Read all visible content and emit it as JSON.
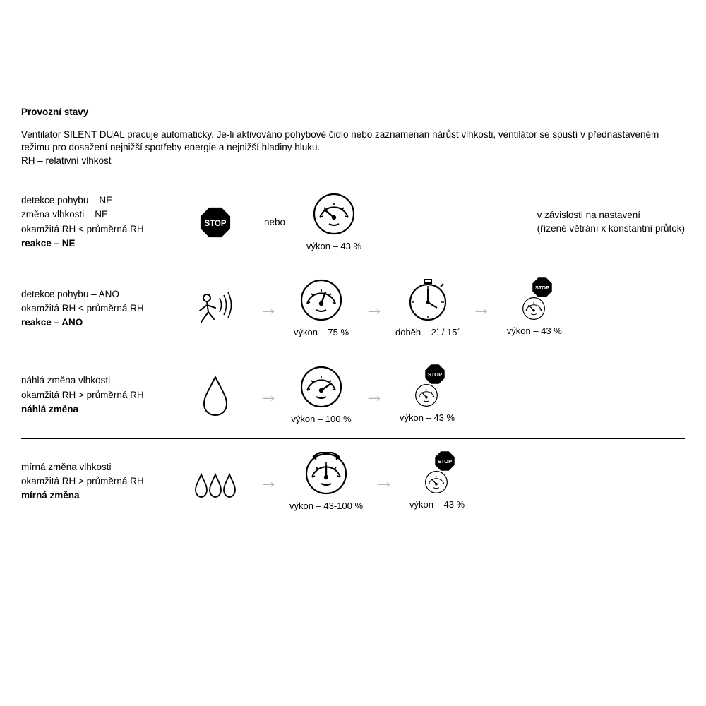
{
  "heading": "Provozní stavy",
  "intro": "Ventilátor SILENT DUAL pracuje automaticky. Je-li aktivováno pohybové čidlo nebo zaznamenán nárůst vlhkosti, ventilátor se spustí v přednastaveném režimu pro dosažení nejnižší spotřeby energie a nejnižší hladiny hluku.\nRH – relativní vlhkost",
  "nebo": "nebo",
  "stop_label": "STOP",
  "colors": {
    "text": "#000000",
    "icon_stroke": "#000000",
    "arrow": "#b6b6b6",
    "stop_fill": "#000000",
    "stop_text": "#ffffff",
    "bg": "#ffffff",
    "rule": "#000000"
  },
  "typography": {
    "base_pt": 10,
    "heading_weight": 700,
    "body_weight": 400
  },
  "rows": [
    {
      "conditions": [
        {
          "text": "detekce pohybu – NE",
          "bold": false
        },
        {
          "text": "změna vlhkosti – NE",
          "bold": false
        },
        {
          "text": "",
          "bold": false
        },
        {
          "text": "okamžitá RH < průměrná RH",
          "bold": false
        },
        {
          "text": "reakce – NE",
          "bold": true
        }
      ],
      "steps": [
        {
          "icon": "stop",
          "caption": ""
        },
        {
          "icon": "nebo",
          "caption": ""
        },
        {
          "icon": "gauge-low",
          "caption": "výkon – 43 %"
        }
      ],
      "side_note": "v závislosti na nastavení\n(řízené větrání x konstantní průtok)"
    },
    {
      "conditions": [
        {
          "text": "detekce pohybu – ANO",
          "bold": false
        },
        {
          "text": "",
          "bold": false
        },
        {
          "text": "okamžitá RH < průměrná RH",
          "bold": false
        },
        {
          "text": "reakce – ANO",
          "bold": true
        }
      ],
      "steps": [
        {
          "icon": "motion",
          "caption": ""
        },
        {
          "icon": "arrow",
          "caption": ""
        },
        {
          "icon": "gauge-mid",
          "caption": "výkon – 75 %"
        },
        {
          "icon": "arrow",
          "caption": ""
        },
        {
          "icon": "timer",
          "caption": "doběh – 2´ / 15´"
        },
        {
          "icon": "arrow",
          "caption": ""
        },
        {
          "icon": "stop-gauge",
          "caption": "výkon – 43 %"
        }
      ]
    },
    {
      "conditions": [
        {
          "text": "náhlá změna vlhkosti",
          "bold": false
        },
        {
          "text": "",
          "bold": false
        },
        {
          "text": "okamžitá RH > průměrná RH",
          "bold": false
        },
        {
          "text": "náhlá změna",
          "bold": true
        }
      ],
      "steps": [
        {
          "icon": "drop",
          "caption": ""
        },
        {
          "icon": "arrow",
          "caption": ""
        },
        {
          "icon": "gauge-high",
          "caption": "výkon – 100 %"
        },
        {
          "icon": "arrow",
          "caption": ""
        },
        {
          "icon": "stop-gauge",
          "caption": "výkon – 43 %"
        }
      ]
    },
    {
      "conditions": [
        {
          "text": "mírná změna vlhkosti",
          "bold": false
        },
        {
          "text": "",
          "bold": false
        },
        {
          "text": "okamžitá RH > průměrná RH",
          "bold": false
        },
        {
          "text": "mírná změna",
          "bold": true
        }
      ],
      "steps": [
        {
          "icon": "drops3",
          "caption": ""
        },
        {
          "icon": "arrow",
          "caption": ""
        },
        {
          "icon": "gauge-var",
          "caption": "výkon – 43-100 %"
        },
        {
          "icon": "arrow",
          "caption": ""
        },
        {
          "icon": "stop-gauge",
          "caption": "výkon – 43 %"
        }
      ]
    }
  ]
}
